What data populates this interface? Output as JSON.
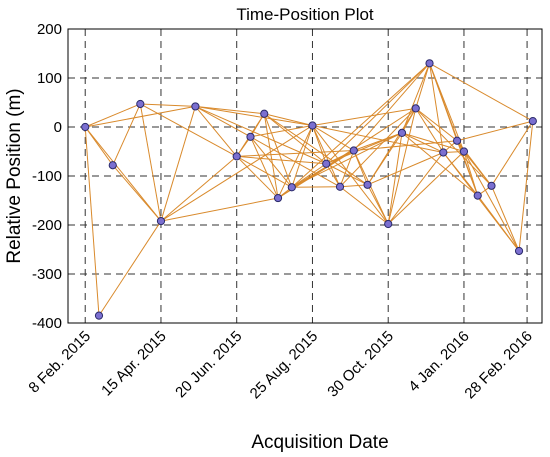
{
  "chart_data": {
    "type": "scatter",
    "title": "Time-Position Plot",
    "xlabel": "Acquisition Date",
    "ylabel": "Relative Position (m)",
    "ylim": [
      -400,
      200
    ],
    "xlim": [
      "2015-01-24",
      "2016-03-12"
    ],
    "x_tick_values": [
      "2015-02-08",
      "2015-04-15",
      "2015-06-20",
      "2015-08-25",
      "2015-10-30",
      "2016-01-04",
      "2016-02-28"
    ],
    "x_tick_labels": [
      "8 Feb. 2015",
      "15 Apr. 2015",
      "20 Jun. 2015",
      "25 Aug. 2015",
      "30 Oct. 2015",
      "4 Jan. 2016",
      "28 Feb. 2016"
    ],
    "y_ticks": [
      200,
      100,
      0,
      -100,
      -200,
      -300,
      -400
    ],
    "grid": true,
    "colors": {
      "marker_fill": "#7b6fd0",
      "marker_edge": "#2a2a6a",
      "edges": "#d98a2c"
    },
    "points": [
      {
        "date": "2015-02-08",
        "y": 0
      },
      {
        "date": "2015-02-20",
        "y": -385
      },
      {
        "date": "2015-03-04",
        "y": -78
      },
      {
        "date": "2015-03-28",
        "y": 47
      },
      {
        "date": "2015-04-15",
        "y": -192
      },
      {
        "date": "2015-05-15",
        "y": 42
      },
      {
        "date": "2015-06-20",
        "y": -60
      },
      {
        "date": "2015-07-02",
        "y": -20
      },
      {
        "date": "2015-07-14",
        "y": 27
      },
      {
        "date": "2015-07-26",
        "y": -145
      },
      {
        "date": "2015-08-07",
        "y": -123
      },
      {
        "date": "2015-08-25",
        "y": 3
      },
      {
        "date": "2015-09-06",
        "y": -75
      },
      {
        "date": "2015-09-18",
        "y": -122
      },
      {
        "date": "2015-09-30",
        "y": -48
      },
      {
        "date": "2015-10-12",
        "y": -118
      },
      {
        "date": "2015-10-30",
        "y": -198
      },
      {
        "date": "2015-11-11",
        "y": -12
      },
      {
        "date": "2015-11-23",
        "y": 38
      },
      {
        "date": "2015-12-05",
        "y": 130
      },
      {
        "date": "2015-12-17",
        "y": -52
      },
      {
        "date": "2015-12-29",
        "y": -28
      },
      {
        "date": "2016-01-04",
        "y": -50
      },
      {
        "date": "2016-01-16",
        "y": -140
      },
      {
        "date": "2016-01-28",
        "y": -120
      },
      {
        "date": "2016-02-21",
        "y": -253
      },
      {
        "date": "2016-03-04",
        "y": 12
      }
    ],
    "edges": [
      [
        0,
        1
      ],
      [
        0,
        2
      ],
      [
        0,
        3
      ],
      [
        0,
        4
      ],
      [
        0,
        5
      ],
      [
        1,
        4
      ],
      [
        2,
        3
      ],
      [
        2,
        4
      ],
      [
        3,
        4
      ],
      [
        3,
        6
      ],
      [
        3,
        5
      ],
      [
        4,
        6
      ],
      [
        4,
        5
      ],
      [
        4,
        9
      ],
      [
        4,
        11
      ],
      [
        5,
        6
      ],
      [
        5,
        7
      ],
      [
        5,
        8
      ],
      [
        5,
        11
      ],
      [
        5,
        12
      ],
      [
        6,
        7
      ],
      [
        6,
        8
      ],
      [
        6,
        9
      ],
      [
        6,
        10
      ],
      [
        6,
        12
      ],
      [
        6,
        14
      ],
      [
        7,
        8
      ],
      [
        7,
        9
      ],
      [
        7,
        10
      ],
      [
        7,
        11
      ],
      [
        7,
        13
      ],
      [
        8,
        9
      ],
      [
        8,
        10
      ],
      [
        8,
        11
      ],
      [
        8,
        12
      ],
      [
        8,
        15
      ],
      [
        9,
        10
      ],
      [
        9,
        11
      ],
      [
        9,
        14
      ],
      [
        9,
        18
      ],
      [
        10,
        11
      ],
      [
        10,
        12
      ],
      [
        10,
        13
      ],
      [
        10,
        14
      ],
      [
        10,
        17
      ],
      [
        10,
        19
      ],
      [
        11,
        12
      ],
      [
        11,
        13
      ],
      [
        11,
        14
      ],
      [
        11,
        16
      ],
      [
        11,
        18
      ],
      [
        11,
        20
      ],
      [
        12,
        13
      ],
      [
        12,
        14
      ],
      [
        12,
        15
      ],
      [
        12,
        17
      ],
      [
        12,
        19
      ],
      [
        13,
        14
      ],
      [
        13,
        15
      ],
      [
        13,
        16
      ],
      [
        13,
        18
      ],
      [
        14,
        15
      ],
      [
        14,
        16
      ],
      [
        14,
        17
      ],
      [
        14,
        19
      ],
      [
        14,
        21
      ],
      [
        15,
        16
      ],
      [
        15,
        17
      ],
      [
        15,
        18
      ],
      [
        15,
        20
      ],
      [
        16,
        17
      ],
      [
        16,
        18
      ],
      [
        16,
        20
      ],
      [
        16,
        22
      ],
      [
        17,
        18
      ],
      [
        17,
        19
      ],
      [
        17,
        20
      ],
      [
        17,
        22
      ],
      [
        17,
        23
      ],
      [
        18,
        19
      ],
      [
        18,
        20
      ],
      [
        18,
        21
      ],
      [
        18,
        24
      ],
      [
        19,
        20
      ],
      [
        19,
        21
      ],
      [
        19,
        22
      ],
      [
        19,
        23
      ],
      [
        19,
        26
      ],
      [
        20,
        21
      ],
      [
        20,
        22
      ],
      [
        20,
        23
      ],
      [
        20,
        25
      ],
      [
        21,
        22
      ],
      [
        21,
        23
      ],
      [
        21,
        24
      ],
      [
        21,
        26
      ],
      [
        22,
        23
      ],
      [
        22,
        24
      ],
      [
        22,
        25
      ],
      [
        23,
        24
      ],
      [
        23,
        25
      ],
      [
        24,
        25
      ],
      [
        24,
        26
      ],
      [
        25,
        26
      ]
    ]
  }
}
